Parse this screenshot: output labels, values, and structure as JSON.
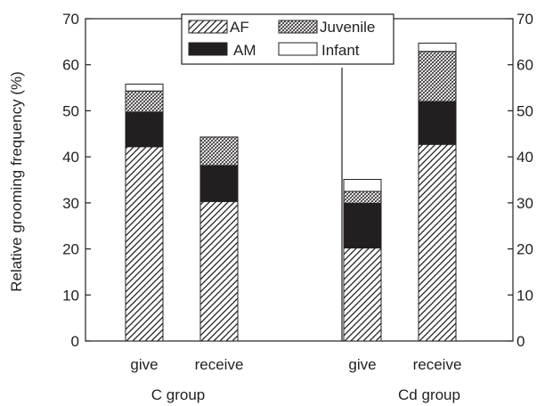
{
  "chart_data": {
    "type": "bar",
    "stacked": true,
    "ylabel": "Relative grooming frequency (%)",
    "ylim": [
      0,
      70
    ],
    "yticks": [
      0,
      10,
      20,
      30,
      40,
      50,
      60,
      70
    ],
    "categories": [
      "give",
      "receive",
      "give",
      "receive"
    ],
    "groups": [
      {
        "label": "C group",
        "categories": [
          "give",
          "receive"
        ]
      },
      {
        "label": "Cd group",
        "categories": [
          "give",
          "receive"
        ]
      }
    ],
    "series": [
      {
        "name": "AF",
        "values": [
          42.2,
          30.3,
          20.2,
          42.7
        ],
        "pattern": "diagonal-hatch"
      },
      {
        "name": "AM",
        "values": [
          7.5,
          7.8,
          9.7,
          9.3
        ],
        "pattern": "solid-black"
      },
      {
        "name": "Juvenile",
        "values": [
          4.6,
          6.2,
          2.6,
          10.9
        ],
        "pattern": "dense-crosshatch"
      },
      {
        "name": "Infant",
        "values": [
          1.5,
          0.0,
          2.6,
          1.8
        ],
        "pattern": "white"
      }
    ],
    "legend": {
      "position": "top-center",
      "columns": 2
    },
    "divider": "between-groups",
    "grid": false,
    "colors": {
      "ink": "#231f20",
      "background": "#ffffff"
    }
  }
}
